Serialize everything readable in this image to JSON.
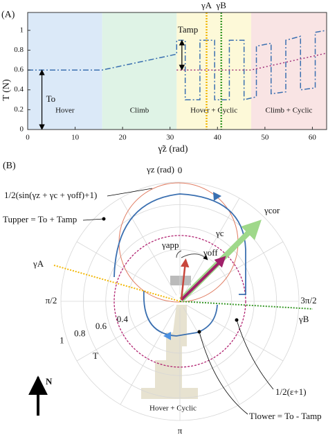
{
  "chart_data": [
    {
      "type": "line",
      "panel_label": "(A)",
      "x_label": "γ̃z (rad)",
      "y_label": "T (N)",
      "xlim": [
        0,
        63
      ],
      "ylim": [
        0,
        1.18
      ],
      "xticks": [
        0,
        10,
        20,
        30,
        40,
        50,
        60
      ],
      "yticks": [
        0,
        0.2,
        0.4,
        0.6,
        0.8,
        1
      ],
      "regions": [
        {
          "label": "Hover",
          "start": 0,
          "end": 15.7,
          "color": "#dbe9f8"
        },
        {
          "label": "Climb",
          "start": 15.7,
          "end": 31.4,
          "color": "#dff3e6"
        },
        {
          "label": "Hover + Cyclic",
          "start": 31.4,
          "end": 47.1,
          "color": "#fdf9d8"
        },
        {
          "label": "Climb + Cyclic",
          "start": 47.1,
          "end": 63,
          "color": "#f9e4e4"
        }
      ],
      "series": [
        {
          "color": "#3a6fb0",
          "dash": "dashdot",
          "x": [
            0,
            15.7,
            31.4,
            31.4,
            33.2,
            33.2,
            36.3,
            36.3,
            39.4,
            39.4,
            42.5,
            42.5,
            45.6,
            45.6,
            48.2,
            48.2,
            51.3,
            51.3,
            54.4,
            54.4,
            57.5,
            57.5,
            60.6,
            60.6,
            63
          ],
          "values": [
            0.6,
            0.6,
            0.76,
            0.9,
            0.9,
            0.3,
            0.3,
            0.9,
            0.9,
            0.3,
            0.3,
            0.9,
            0.9,
            0.3,
            0.33,
            0.84,
            0.87,
            0.36,
            0.38,
            0.9,
            0.94,
            0.4,
            0.42,
            0.98,
            1.0
          ]
        },
        {
          "color": "#a0307a",
          "dash": "dotted",
          "x": [
            31.4,
            47.1,
            63
          ],
          "values": [
            0.6,
            0.6,
            0.77
          ]
        }
      ],
      "vlines": [
        {
          "label": "γA",
          "x": 37.7,
          "color": "#f2b705"
        },
        {
          "label": "γB",
          "x": 40.8,
          "color": "#3a9a2a"
        }
      ],
      "annotations": [
        {
          "text": "To",
          "x": 3,
          "y1": 0,
          "y2": 0.6
        },
        {
          "text": "Tamp",
          "x": 32.5,
          "y1": 0.6,
          "y2": 0.9
        }
      ]
    },
    {
      "type": "polar",
      "panel_label": "(B)",
      "theta_label": "γz (rad)",
      "r_label": "T",
      "thetaticks": [
        0,
        {
          "value": 1.5708,
          "label": "π/2"
        },
        {
          "value": 3.1416,
          "label": "π"
        },
        {
          "value": 4.7124,
          "label": "3π/2"
        }
      ],
      "rlim": [
        0,
        1
      ],
      "rticks": [
        0.4,
        0.6,
        0.8,
        1
      ],
      "annotations": [
        "1/2(sin(γz + γc + γoff)+1)",
        "Tupper = To + Tamp",
        "γA",
        "γB",
        "γcor",
        "γc",
        "γapp",
        "γoff",
        "1/2(ε+1)",
        "Tlower = To - Tamp",
        "Hover + Cyclic",
        "N"
      ]
    }
  ]
}
